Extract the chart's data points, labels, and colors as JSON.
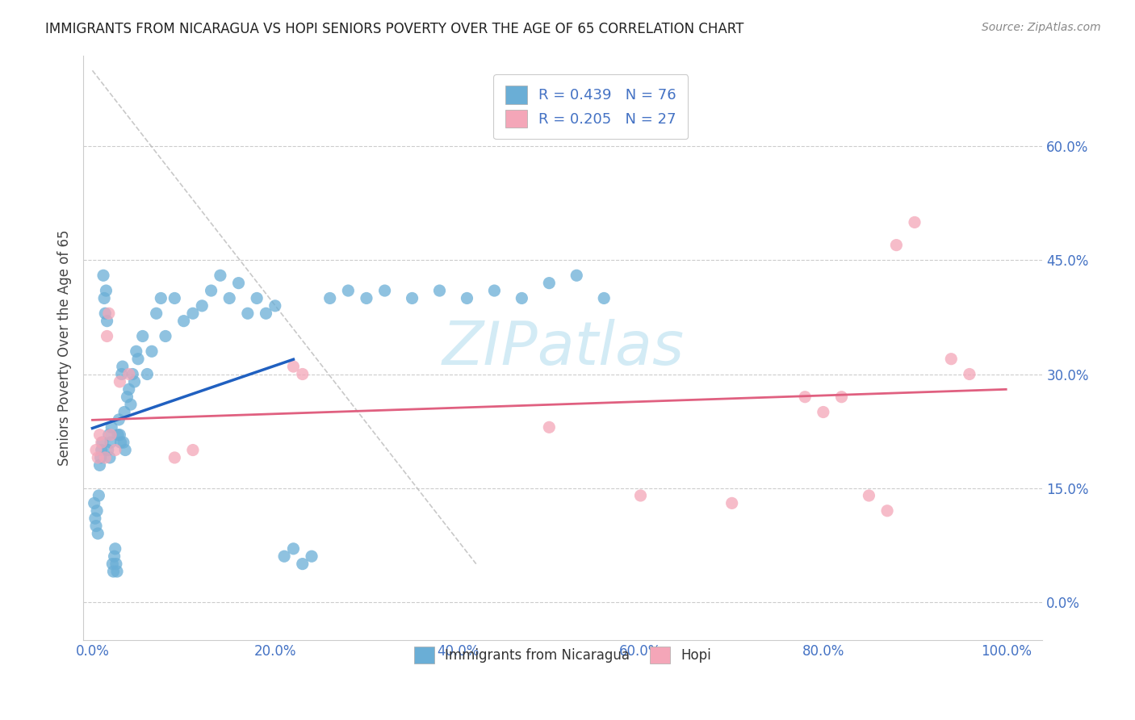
{
  "title": "IMMIGRANTS FROM NICARAGUA VS HOPI SENIORS POVERTY OVER THE AGE OF 65 CORRELATION CHART",
  "source": "Source: ZipAtlas.com",
  "ylabel": "Seniors Poverty Over the Age of 65",
  "blue_color": "#6aaed6",
  "pink_color": "#f4a6b8",
  "blue_line_color": "#2060c0",
  "pink_line_color": "#e06080",
  "dash_line_color": "#bbbbbb",
  "watermark_color": "#cce8f4",
  "background_color": "#ffffff",
  "grid_color": "#cccccc",
  "tick_color": "#4472c4",
  "title_color": "#222222",
  "source_color": "#888888",
  "ylabel_color": "#444444",
  "legend1_label": "R = 0.439   N = 76",
  "legend2_label": "R = 0.205   N = 27",
  "bottom_legend1": "Immigrants from Nicaragua",
  "bottom_legend2": "Hopi",
  "watermark": "ZIPatlas",
  "yticks": [
    0.0,
    0.15,
    0.3,
    0.45,
    0.6
  ],
  "yticklabels": [
    "0.0%",
    "15.0%",
    "30.0%",
    "45.0%",
    "60.0%"
  ],
  "xticks": [
    0.0,
    0.2,
    0.4,
    0.6,
    0.8,
    1.0
  ],
  "xticklabels": [
    "0.0%",
    "20.0%",
    "40.0%",
    "60.0%",
    "80.0%",
    "100.0%"
  ],
  "xlim": [
    -0.01,
    1.04
  ],
  "ylim": [
    -0.05,
    0.72
  ],
  "blue_x": [
    0.002,
    0.003,
    0.004,
    0.005,
    0.006,
    0.007,
    0.008,
    0.009,
    0.01,
    0.011,
    0.012,
    0.013,
    0.014,
    0.015,
    0.016,
    0.017,
    0.018,
    0.019,
    0.02,
    0.021,
    0.022,
    0.023,
    0.024,
    0.025,
    0.026,
    0.027,
    0.028,
    0.029,
    0.03,
    0.031,
    0.032,
    0.033,
    0.034,
    0.035,
    0.036,
    0.038,
    0.04,
    0.042,
    0.044,
    0.046,
    0.048,
    0.05,
    0.055,
    0.06,
    0.065,
    0.07,
    0.075,
    0.08,
    0.09,
    0.1,
    0.11,
    0.12,
    0.13,
    0.14,
    0.15,
    0.16,
    0.17,
    0.18,
    0.19,
    0.2,
    0.21,
    0.22,
    0.23,
    0.24,
    0.26,
    0.28,
    0.3,
    0.32,
    0.35,
    0.38,
    0.41,
    0.44,
    0.47,
    0.5,
    0.53,
    0.56
  ],
  "blue_y": [
    0.13,
    0.11,
    0.1,
    0.12,
    0.09,
    0.14,
    0.18,
    0.19,
    0.2,
    0.21,
    0.43,
    0.4,
    0.38,
    0.41,
    0.37,
    0.2,
    0.22,
    0.19,
    0.21,
    0.23,
    0.05,
    0.04,
    0.06,
    0.07,
    0.05,
    0.04,
    0.22,
    0.24,
    0.22,
    0.21,
    0.3,
    0.31,
    0.21,
    0.25,
    0.2,
    0.27,
    0.28,
    0.26,
    0.3,
    0.29,
    0.33,
    0.32,
    0.35,
    0.3,
    0.33,
    0.38,
    0.4,
    0.35,
    0.4,
    0.37,
    0.38,
    0.39,
    0.41,
    0.43,
    0.4,
    0.42,
    0.38,
    0.4,
    0.38,
    0.39,
    0.06,
    0.07,
    0.05,
    0.06,
    0.4,
    0.41,
    0.4,
    0.41,
    0.4,
    0.41,
    0.4,
    0.41,
    0.4,
    0.42,
    0.43,
    0.4
  ],
  "pink_x": [
    0.004,
    0.006,
    0.008,
    0.01,
    0.014,
    0.016,
    0.018,
    0.02,
    0.025,
    0.03,
    0.04,
    0.09,
    0.11,
    0.22,
    0.23,
    0.5,
    0.6,
    0.7,
    0.78,
    0.8,
    0.82,
    0.85,
    0.87,
    0.88,
    0.9,
    0.94,
    0.96
  ],
  "pink_y": [
    0.2,
    0.19,
    0.22,
    0.21,
    0.19,
    0.35,
    0.38,
    0.22,
    0.2,
    0.29,
    0.3,
    0.19,
    0.2,
    0.31,
    0.3,
    0.23,
    0.14,
    0.13,
    0.27,
    0.25,
    0.27,
    0.14,
    0.12,
    0.47,
    0.5,
    0.32,
    0.3
  ]
}
